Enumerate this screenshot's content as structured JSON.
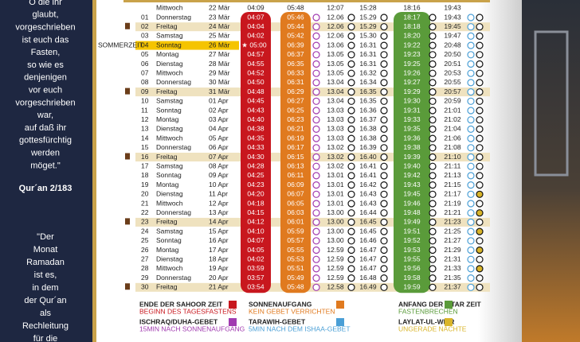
{
  "quote1": [
    "O die ihr",
    "glaubt,",
    "vorgeschrieben",
    "ist euch das",
    "Fasten,",
    "so wie es",
    "denjenigen",
    "vor euch",
    "vorgeschrieben",
    "war,",
    "auf daß ihr",
    "gottesfürchtig",
    "werden",
    "möget.\""
  ],
  "quote1_source": "Qur´an 2/183",
  "quote2": [
    "\"Der",
    "Monat",
    "Ramadan",
    "ist es,",
    "in dem",
    "der Qur´an",
    "als",
    "Rechleitung",
    "für die"
  ],
  "summer_label": "SOMMERZEIT",
  "header_row": {
    "day": "Mittwoch",
    "date": "22 Mär",
    "times": [
      "04:09",
      "05:48",
      "12:07",
      "15:28",
      "18:16",
      "19:43"
    ]
  },
  "rows": [
    {
      "no": "01",
      "day": "Donnerstag",
      "date": "23 Mär",
      "times": [
        "04:07",
        "05:46",
        "12.06",
        "15.29",
        "18:17",
        "19:43"
      ]
    },
    {
      "no": "02",
      "day": "Freitag",
      "date": "24 Mär",
      "times": [
        "04:04",
        "05:44",
        "12.06",
        "15.29",
        "18:18",
        "19:45"
      ],
      "friday": true
    },
    {
      "no": "03",
      "day": "Samstag",
      "date": "25 Mär",
      "times": [
        "04:02",
        "05:42",
        "12.06",
        "15.30",
        "18:20",
        "19:47"
      ]
    },
    {
      "no": "04",
      "day": "Sonntag",
      "date": "26 Mär",
      "times": [
        "05:00",
        "06:39",
        "13.06",
        "16.31",
        "19:22",
        "20:48"
      ],
      "summer": true,
      "star": "★"
    },
    {
      "no": "05",
      "day": "Montag",
      "date": "27 Mär",
      "times": [
        "04:57",
        "06:37",
        "13.05",
        "16.31",
        "19:23",
        "20:50"
      ]
    },
    {
      "no": "06",
      "day": "Dienstag",
      "date": "28 Mär",
      "times": [
        "04:55",
        "06:35",
        "13.05",
        "16.31",
        "19:25",
        "20:51"
      ]
    },
    {
      "no": "07",
      "day": "Mittwoch",
      "date": "29 Mär",
      "times": [
        "04:52",
        "06:33",
        "13.05",
        "16.32",
        "19:26",
        "20:53"
      ]
    },
    {
      "no": "08",
      "day": "Donnerstag",
      "date": "30 Mär",
      "times": [
        "04:50",
        "06:31",
        "13.04",
        "16.34",
        "19:27",
        "20:55"
      ]
    },
    {
      "no": "09",
      "day": "Freitag",
      "date": "31 Mär",
      "times": [
        "04:48",
        "06:29",
        "13.04",
        "16.35",
        "19:29",
        "20:57"
      ],
      "friday": true
    },
    {
      "no": "10",
      "day": "Samstag",
      "date": "01 Apr",
      "times": [
        "04:45",
        "06:27",
        "13.04",
        "16.35",
        "19:30",
        "20:59"
      ]
    },
    {
      "no": "11",
      "day": "Sonntag",
      "date": "02 Apr",
      "times": [
        "04:43",
        "06:25",
        "13.03",
        "16.36",
        "19:31",
        "21:01"
      ]
    },
    {
      "no": "12",
      "day": "Montag",
      "date": "03 Apr",
      "times": [
        "04:40",
        "06:23",
        "13.03",
        "16.37",
        "19:33",
        "21:02"
      ]
    },
    {
      "no": "13",
      "day": "Dienstag",
      "date": "04 Apr",
      "times": [
        "04:38",
        "06:21",
        "13.03",
        "16.38",
        "19:35",
        "21:04"
      ]
    },
    {
      "no": "14",
      "day": "Mittwoch",
      "date": "05 Apr",
      "times": [
        "04:35",
        "06:19",
        "13.03",
        "16.38",
        "19:36",
        "21:06"
      ]
    },
    {
      "no": "15",
      "day": "Donnerstag",
      "date": "06 Apr",
      "times": [
        "04:33",
        "06:17",
        "13.02",
        "16.39",
        "19:38",
        "21:08"
      ]
    },
    {
      "no": "16",
      "day": "Freitag",
      "date": "07 Apr",
      "times": [
        "04:30",
        "06:15",
        "13.02",
        "16.40",
        "19:39",
        "21:10"
      ],
      "friday": true
    },
    {
      "no": "17",
      "day": "Samstag",
      "date": "08 Apr",
      "times": [
        "04:28",
        "06:13",
        "13.02",
        "16.41",
        "19:40",
        "21:11"
      ]
    },
    {
      "no": "18",
      "day": "Sonntag",
      "date": "09 Apr",
      "times": [
        "04:25",
        "06:11",
        "13.01",
        "16.41",
        "19:42",
        "21:13"
      ]
    },
    {
      "no": "19",
      "day": "Montag",
      "date": "10 Apr",
      "times": [
        "04:23",
        "06:09",
        "13.01",
        "16.42",
        "19:43",
        "21:15"
      ]
    },
    {
      "no": "20",
      "day": "Dienstag",
      "date": "11 Apr",
      "times": [
        "04:20",
        "06:07",
        "13.01",
        "16.43",
        "19:45",
        "21:17"
      ],
      "witr": true
    },
    {
      "no": "21",
      "day": "Mittwoch",
      "date": "12 Apr",
      "times": [
        "04:18",
        "06:05",
        "13.01",
        "16.43",
        "19:46",
        "21:19"
      ]
    },
    {
      "no": "22",
      "day": "Donnerstag",
      "date": "13 Apr",
      "times": [
        "04:15",
        "06:03",
        "13.00",
        "16.44",
        "19:48",
        "21:21"
      ],
      "witr": true
    },
    {
      "no": "23",
      "day": "Freitag",
      "date": "14 Apr",
      "times": [
        "04:12",
        "06:01",
        "13.00",
        "16.45",
        "19:49",
        "21:23"
      ],
      "friday": true
    },
    {
      "no": "24",
      "day": "Samstag",
      "date": "15 Apr",
      "times": [
        "04:10",
        "05:59",
        "13.00",
        "16.45",
        "19:51",
        "21:25"
      ],
      "witr": true
    },
    {
      "no": "25",
      "day": "Sonntag",
      "date": "16 Apr",
      "times": [
        "04:07",
        "05:57",
        "13.00",
        "16.46",
        "19:52",
        "21:27"
      ]
    },
    {
      "no": "26",
      "day": "Montag",
      "date": "17 Apr",
      "times": [
        "04:05",
        "05:55",
        "12.59",
        "16.47",
        "19:53",
        "21:29"
      ],
      "witr": true
    },
    {
      "no": "27",
      "day": "Dienstag",
      "date": "18 Apr",
      "times": [
        "04:02",
        "05:53",
        "12.59",
        "16.47",
        "19:55",
        "21:31"
      ]
    },
    {
      "no": "28",
      "day": "Mittwoch",
      "date": "19 Apr",
      "times": [
        "03:59",
        "05:51",
        "12.59",
        "16.47",
        "19:56",
        "21:33"
      ],
      "witr": true
    },
    {
      "no": "29",
      "day": "Donnerstag",
      "date": "20 Apr",
      "times": [
        "03:57",
        "05:49",
        "12.59",
        "16.48",
        "19:58",
        "21:35"
      ]
    },
    {
      "no": "30",
      "day": "Freitag",
      "date": "21 Apr",
      "times": [
        "03:54",
        "05:48",
        "12.58",
        "16.49",
        "19:59",
        "21:37"
      ],
      "friday": true
    }
  ],
  "legend": [
    {
      "title": "ENDE DER SAHOOR ZEIT",
      "subtitle": "BEGINN DES TAGESFASTENS",
      "color": "#c8171e"
    },
    {
      "title": "SONNENAUFGANG",
      "subtitle": "KEIN GEBET VERRICHTEN",
      "color": "#e07a1f"
    },
    {
      "title": "ANFANG DER IFTAR ZEIT",
      "subtitle": "FASTENBRECHEN",
      "color": "#5a9b3a"
    },
    {
      "title": "ISCHRAQ/DUHA-GEBET",
      "subtitle": "15MIN NACH SONNENAUFGANG",
      "color": "#a03ab0"
    },
    {
      "title": "TARAWIH-GEBET",
      "subtitle": "5MIN NACH DEM ISHAA-GEBET",
      "color": "#4a9fd6"
    },
    {
      "title": "LAYLAT-UL-WITR",
      "subtitle": "UNGERADE NÄCHTE",
      "color": "#d9b52a"
    }
  ]
}
